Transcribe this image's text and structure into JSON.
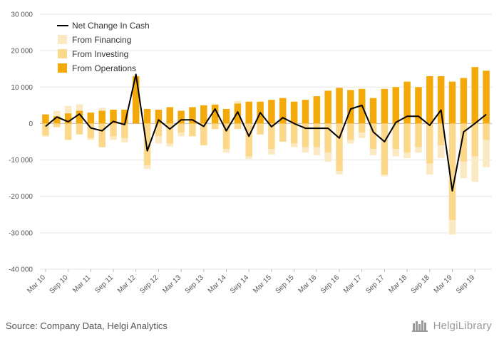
{
  "chart_data": {
    "type": "bar",
    "title": "",
    "xlabel": "",
    "ylabel": "",
    "ylim": [
      -40000,
      30000
    ],
    "yticks": [
      30000,
      20000,
      10000,
      0,
      -10000,
      -20000,
      -30000,
      -40000
    ],
    "ytick_labels": [
      "30 000",
      "20 000",
      "10 000",
      "0",
      "-10 000",
      "-20 000",
      "-30 000",
      "-40 000"
    ],
    "categories": [
      "Mar 10",
      "Jun 10",
      "Sep 10",
      "Dec 10",
      "Mar 11",
      "Jun 11",
      "Sep 11",
      "Dec 11",
      "Mar 12",
      "Jun 12",
      "Sep 12",
      "Dec 12",
      "Mar 13",
      "Jun 13",
      "Sep 13",
      "Dec 13",
      "Mar 14",
      "Jun 14",
      "Sep 14",
      "Dec 14",
      "Mar 15",
      "Jun 15",
      "Sep 15",
      "Dec 15",
      "Mar 16",
      "Jun 16",
      "Sep 16",
      "Dec 16",
      "Mar 17",
      "Jun 17",
      "Sep 17",
      "Dec 17",
      "Mar 18",
      "Jun 18",
      "Sep 18",
      "Dec 18",
      "Mar 19",
      "Jun 19",
      "Sep 19",
      "Dec 19"
    ],
    "xtick_labels": [
      "Mar 10",
      "Sep 10",
      "Mar 11",
      "Sep 11",
      "Mar 12",
      "Sep 12",
      "Mar 13",
      "Sep 13",
      "Mar 14",
      "Sep 14",
      "Mar 15",
      "Sep 15",
      "Mar 16",
      "Sep 16",
      "Mar 17",
      "Sep 17",
      "Mar 18",
      "Sep 18",
      "Mar 19",
      "Sep 19"
    ],
    "legend_position": "top-left",
    "series": [
      {
        "name": "Net Change In Cash",
        "kind": "line",
        "color": "#000000",
        "values": [
          -800,
          1800,
          500,
          2600,
          -1200,
          -2000,
          600,
          -300,
          13500,
          -7500,
          1000,
          -1500,
          1000,
          1000,
          -800,
          4000,
          -2000,
          3200,
          -3500,
          3000,
          -900,
          1600,
          0,
          -1300,
          -1300,
          -1300,
          -4000,
          4000,
          5000,
          -2300,
          -5000,
          300,
          2000,
          2000,
          -500,
          3700,
          -18500,
          -2300,
          0,
          2500
        ]
      },
      {
        "name": "From Financing",
        "kind": "bar",
        "color": "#fbe9c3",
        "values": [
          -300,
          1500,
          2000,
          1800,
          -500,
          800,
          -1000,
          -1200,
          0,
          -1000,
          -2000,
          -800,
          -1000,
          0,
          0,
          0,
          -1000,
          700,
          -700,
          0,
          -1500,
          0,
          -1000,
          -1500,
          -2200,
          -2500,
          -1000,
          -1000,
          -1500,
          -1700,
          -500,
          -2000,
          -1500,
          -1500,
          -3000,
          -3500,
          -4000,
          -4500,
          -7000,
          -7500
        ]
      },
      {
        "name": "From Investing",
        "kind": "bar",
        "color": "#fbd88a",
        "values": [
          -3300,
          -1000,
          -4500,
          -3000,
          -4000,
          -6500,
          -3500,
          -4000,
          0,
          -11500,
          -3500,
          -5500,
          -2500,
          -3500,
          -6000,
          -1500,
          -7000,
          -1500,
          -9000,
          -3000,
          -7000,
          -5000,
          -5500,
          -6500,
          -6500,
          -8000,
          -13000,
          -4500,
          -2500,
          -7000,
          -14000,
          -7000,
          -8000,
          -6500,
          -11000,
          -6000,
          -26500,
          -10500,
          -9000,
          -4500
        ]
      },
      {
        "name": "From Operations",
        "kind": "bar",
        "color": "#f4a90b",
        "values": [
          2500,
          2000,
          2800,
          3500,
          3000,
          3500,
          3800,
          3800,
          13000,
          4000,
          3800,
          4500,
          3500,
          4500,
          5000,
          5200,
          4000,
          5500,
          6000,
          6000,
          6500,
          7000,
          6000,
          6500,
          7500,
          9000,
          9800,
          9200,
          9500,
          7000,
          9500,
          10000,
          11500,
          10000,
          13000,
          13000,
          11500,
          12500,
          15500,
          14500
        ]
      }
    ]
  },
  "footer": {
    "source": "Source: Company Data, Helgi Analytics",
    "brand": "HelgiLibrary"
  }
}
